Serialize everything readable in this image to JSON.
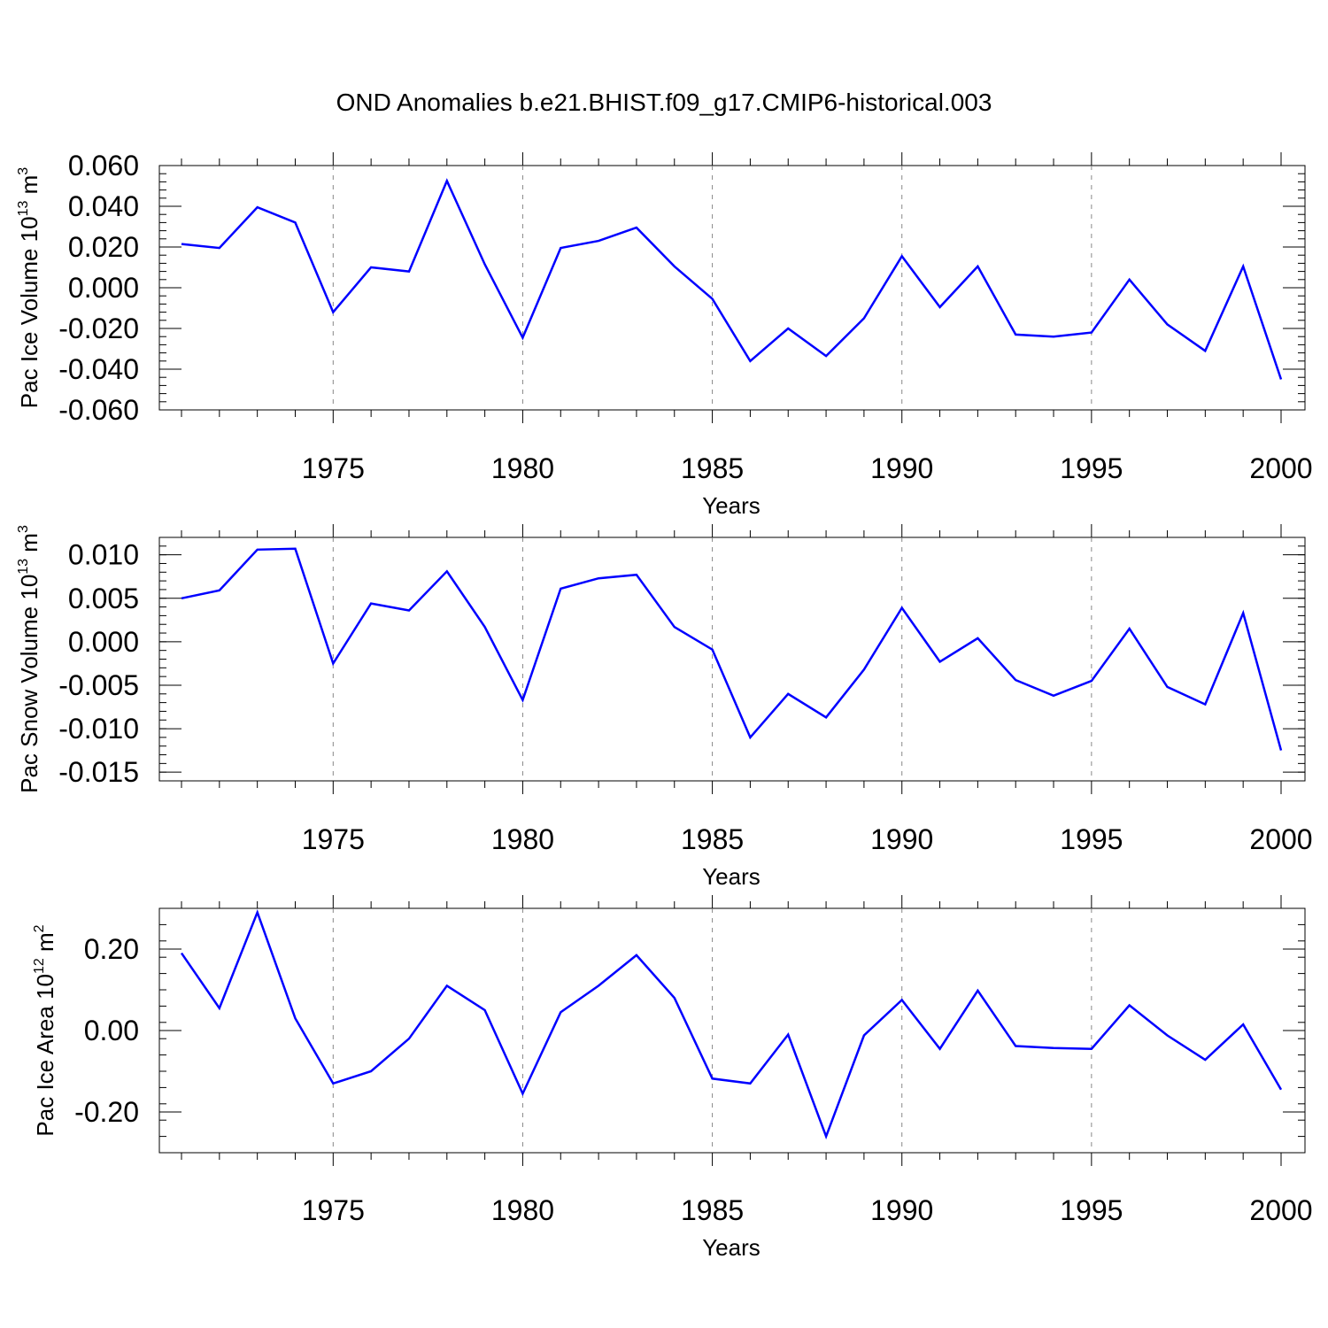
{
  "title": "OND Anomalies b.e21.BHIST.f09_g17.CMIP6-historical.003",
  "colors": {
    "line": "#0000ff",
    "axis": "#000000",
    "grid": "#888888"
  },
  "chart_data": [
    {
      "type": "line",
      "name": "Pac Ice Volume",
      "ylabel": {
        "main": "Pac Ice Volume 10",
        "exponent": "13",
        "unit": " m",
        "unit_exponent": "3"
      },
      "xlabel": "Years",
      "xlim": [
        1971,
        2000
      ],
      "ylim": [
        -0.06,
        0.06
      ],
      "xticks": [
        1975,
        1980,
        1985,
        1990,
        1995,
        2000
      ],
      "yticks": [
        -0.06,
        -0.04,
        -0.02,
        0.0,
        0.02,
        0.04,
        0.06
      ],
      "ytick_labels": [
        "-0.060",
        "-0.040",
        "-0.020",
        "0.000",
        "0.020",
        "0.040",
        "0.060"
      ],
      "x": [
        1971,
        1972,
        1973,
        1974,
        1975,
        1976,
        1977,
        1978,
        1979,
        1980,
        1981,
        1982,
        1983,
        1984,
        1985,
        1986,
        1987,
        1988,
        1989,
        1990,
        1991,
        1992,
        1993,
        1994,
        1995,
        1996,
        1997,
        1998,
        1999,
        2000
      ],
      "values": [
        0.0215,
        0.0195,
        0.0395,
        0.032,
        -0.012,
        0.01,
        0.008,
        0.0525,
        0.0115,
        -0.0245,
        0.0195,
        0.023,
        0.0295,
        0.0105,
        -0.0055,
        -0.036,
        -0.02,
        -0.0335,
        -0.015,
        0.0155,
        -0.0095,
        0.0105,
        -0.023,
        -0.024,
        -0.022,
        0.004,
        -0.018,
        -0.031,
        0.0105,
        -0.045
      ]
    },
    {
      "type": "line",
      "name": "Pac Snow Volume",
      "ylabel": {
        "main": "Pac Snow Volume 10",
        "exponent": "13",
        "unit": " m",
        "unit_exponent": "3"
      },
      "xlabel": "Years",
      "xlim": [
        1971,
        2000
      ],
      "ylim": [
        -0.016,
        0.012
      ],
      "xticks": [
        1975,
        1980,
        1985,
        1990,
        1995,
        2000
      ],
      "yticks": [
        -0.015,
        -0.01,
        -0.005,
        0.0,
        0.005,
        0.01
      ],
      "ytick_labels": [
        "-0.015",
        "-0.010",
        "-0.005",
        "0.000",
        "0.005",
        "0.010"
      ],
      "x": [
        1971,
        1972,
        1973,
        1974,
        1975,
        1976,
        1977,
        1978,
        1979,
        1980,
        1981,
        1982,
        1983,
        1984,
        1985,
        1986,
        1987,
        1988,
        1989,
        1990,
        1991,
        1992,
        1993,
        1994,
        1995,
        1996,
        1997,
        1998,
        1999,
        2000
      ],
      "values": [
        0.005,
        0.0059,
        0.0106,
        0.0107,
        -0.0025,
        0.0044,
        0.0036,
        0.0081,
        0.0017,
        -0.0067,
        0.0061,
        0.0073,
        0.0077,
        0.0017,
        -0.0009,
        -0.011,
        -0.006,
        -0.0087,
        -0.0032,
        0.0039,
        -0.0023,
        0.0004,
        -0.0044,
        -0.0062,
        -0.0045,
        0.0015,
        -0.0052,
        -0.0072,
        0.0033,
        -0.0125
      ]
    },
    {
      "type": "line",
      "name": "Pac Ice Area",
      "ylabel": {
        "main": "Pac Ice Area 10",
        "exponent": "12",
        "unit": " m",
        "unit_exponent": "2"
      },
      "xlabel": "Years",
      "xlim": [
        1971,
        2000
      ],
      "ylim": [
        -0.3,
        0.3
      ],
      "xticks": [
        1975,
        1980,
        1985,
        1990,
        1995,
        2000
      ],
      "yticks": [
        -0.2,
        0.0,
        0.2
      ],
      "ytick_labels": [
        "-0.20",
        "0.00",
        "0.20"
      ],
      "x": [
        1971,
        1972,
        1973,
        1974,
        1975,
        1976,
        1977,
        1978,
        1979,
        1980,
        1981,
        1982,
        1983,
        1984,
        1985,
        1986,
        1987,
        1988,
        1989,
        1990,
        1991,
        1992,
        1993,
        1994,
        1995,
        1996,
        1997,
        1998,
        1999,
        2000
      ],
      "values": [
        0.19,
        0.055,
        0.29,
        0.03,
        -0.13,
        -0.1,
        -0.02,
        0.11,
        0.05,
        -0.155,
        0.045,
        0.11,
        0.185,
        0.08,
        -0.118,
        -0.13,
        -0.01,
        -0.26,
        -0.012,
        0.075,
        -0.045,
        0.098,
        -0.038,
        -0.043,
        -0.045,
        0.062,
        -0.012,
        -0.072,
        0.015,
        -0.145
      ]
    }
  ]
}
